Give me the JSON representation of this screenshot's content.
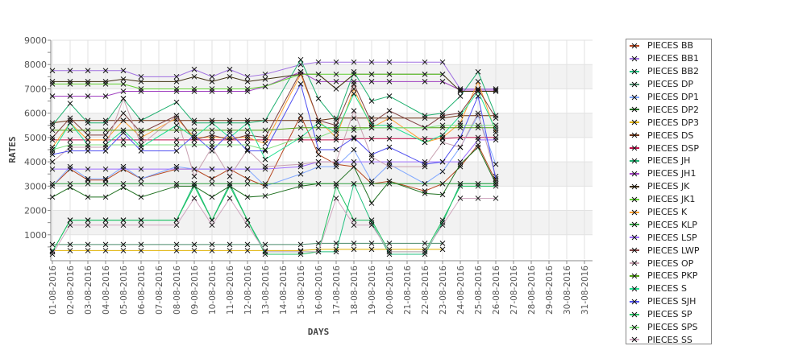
{
  "chart_data": {
    "type": "line",
    "xlabel": "DAYS",
    "ylabel": "RATES",
    "ylim": [
      0,
      9000
    ],
    "yticks": [
      1000,
      2000,
      3000,
      4000,
      5000,
      6000,
      7000,
      8000,
      9000
    ],
    "x_tick_labels": [
      "01-08-2016",
      "02-08-2016",
      "03-08-2016",
      "04-08-2016",
      "05-08-2016",
      "06-08-2016",
      "07-08-2016",
      "08-08-2016",
      "09-08-2016",
      "10-08-2016",
      "11-08-2016",
      "12-08-2016",
      "13-08-2016",
      "14-08-2016",
      "15-08-2016",
      "16-08-2016",
      "17-08-2016",
      "18-08-2016",
      "19-08-2016",
      "20-08-2016",
      "21-08-2016",
      "22-08-2016",
      "23-08-2016",
      "24-08-2016",
      "25-08-2016",
      "26-08-2016",
      "27-08-2016",
      "28-08-2016",
      "29-08-2016",
      "30-08-2016",
      "31-08-2016"
    ],
    "x_days": [
      1,
      2,
      3,
      4,
      5,
      6,
      8,
      9,
      10,
      11,
      12,
      13,
      15,
      16,
      17,
      18,
      19,
      20,
      22,
      23,
      24,
      25,
      26
    ],
    "legend_position": "right",
    "grid": true,
    "series": [
      {
        "name": "PIECES BB",
        "color": "#b5461f",
        "values": [
          3000,
          3700,
          3250,
          3250,
          3700,
          3300,
          3700,
          3700,
          3300,
          3700,
          3300,
          3000,
          5900,
          4300,
          3900,
          3800,
          3100,
          3200,
          2800,
          3100,
          3800,
          4700,
          3200
        ]
      },
      {
        "name": "PIECES BB1",
        "color": "#a070e0",
        "values": [
          7750,
          7750,
          7750,
          7750,
          7750,
          7500,
          7500,
          7800,
          7500,
          7800,
          7500,
          7600,
          8000,
          8100,
          8100,
          8100,
          8100,
          8100,
          8100,
          8100,
          7000,
          7000,
          7000
        ]
      },
      {
        "name": "PIECES BB2",
        "color": "#20c080",
        "values": [
          300,
          1600,
          1600,
          1600,
          1600,
          1600,
          1600,
          3100,
          1600,
          3100,
          1600,
          300,
          300,
          300,
          300,
          3100,
          1500,
          200,
          200,
          1500,
          3100,
          3100,
          3100
        ]
      },
      {
        "name": "PIECES DP",
        "color": "#4a8a6a",
        "values": [
          600,
          600,
          600,
          600,
          600,
          600,
          600,
          600,
          600,
          600,
          600,
          600,
          600,
          650,
          650,
          650,
          650,
          650,
          650,
          650,
          null,
          null,
          null
        ]
      },
      {
        "name": "PIECES DP1",
        "color": "#80a8ff",
        "values": [
          3000,
          3800,
          3300,
          3300,
          3800,
          3300,
          3800,
          3700,
          3700,
          3700,
          3700,
          3000,
          3500,
          3800,
          3800,
          4500,
          3200,
          3900,
          3100,
          3600,
          4600,
          5900,
          3900
        ]
      },
      {
        "name": "PIECES DP2",
        "color": "#207020",
        "values": [
          2550,
          2950,
          2550,
          2550,
          2950,
          2550,
          3000,
          3000,
          2550,
          3000,
          2550,
          2600,
          3000,
          3100,
          3100,
          3800,
          2300,
          3200,
          2700,
          2650,
          3900,
          4600,
          3100
        ]
      },
      {
        "name": "PIECES DP3",
        "color": "#e0b000",
        "values": [
          350,
          350,
          350,
          350,
          350,
          350,
          350,
          350,
          350,
          350,
          350,
          350,
          350,
          400,
          400,
          400,
          400,
          400,
          400,
          400,
          null,
          null,
          null
        ]
      },
      {
        "name": "PIECES DS",
        "color": "#6a3010",
        "values": [
          5600,
          5700,
          5700,
          5700,
          5700,
          5700,
          5700,
          5700,
          5700,
          5700,
          5700,
          5700,
          5700,
          5700,
          5800,
          5800,
          5800,
          5800,
          5800,
          5800,
          5900,
          5900,
          5900
        ]
      },
      {
        "name": "PIECES DSP",
        "color": "#c0104a",
        "values": [
          4900,
          4900,
          4900,
          4900,
          4900,
          4900,
          4900,
          4900,
          4900,
          4900,
          4900,
          4900,
          4900,
          4900,
          4900,
          4950,
          4950,
          4950,
          4950,
          4950,
          5000,
          5000,
          5000
        ]
      },
      {
        "name": "PIECES JH",
        "color": "#20b070",
        "values": [
          5500,
          6400,
          5600,
          5600,
          6600,
          5700,
          6450,
          5600,
          5600,
          5600,
          5600,
          5700,
          8200,
          6600,
          5700,
          7700,
          6500,
          6700,
          5900,
          6000,
          6700,
          7700,
          5900
        ]
      },
      {
        "name": "PIECES JH1",
        "color": "#a040c0",
        "values": [
          6700,
          6700,
          6700,
          6700,
          6900,
          6900,
          6900,
          6900,
          6900,
          6900,
          6900,
          7100,
          7700,
          7300,
          7300,
          7300,
          7300,
          7300,
          7300,
          7300,
          6950,
          6950,
          6950
        ]
      },
      {
        "name": "PIECES JK",
        "color": "#403010",
        "values": [
          7300,
          7300,
          7300,
          7300,
          7400,
          7300,
          7300,
          7500,
          7300,
          7500,
          7300,
          7400,
          7600,
          7600,
          7000,
          7600,
          7600,
          7600,
          7600,
          7600,
          6900,
          6900,
          6900
        ]
      },
      {
        "name": "PIECES JK1",
        "color": "#60d030",
        "values": [
          7200,
          7200,
          7200,
          7200,
          7200,
          7000,
          7000,
          7000,
          7000,
          7000,
          7000,
          7100,
          7600,
          7600,
          7600,
          7600,
          7600,
          7600,
          7600,
          7600,
          null,
          null,
          null
        ]
      },
      {
        "name": "PIECES K",
        "color": "#ffa030",
        "values": [
          4600,
          5600,
          4900,
          4900,
          5700,
          5000,
          5800,
          5000,
          5000,
          5000,
          5000,
          4750,
          7600,
          5700,
          5000,
          7000,
          5400,
          5800,
          4800,
          5000,
          5600,
          7300,
          5200
        ]
      },
      {
        "name": "PIECES KLP",
        "color": "#30a040",
        "values": [
          3100,
          3100,
          3100,
          3100,
          3100,
          3100,
          3100,
          3100,
          3100,
          3100,
          3100,
          3100,
          3100,
          3100,
          3100,
          3100,
          3100,
          3100,
          3100,
          3100,
          3100,
          3100,
          3100
        ]
      },
      {
        "name": "PIECES LSP",
        "color": "#a070ff",
        "values": [
          3700,
          3700,
          3700,
          3700,
          3700,
          3700,
          3700,
          3700,
          3700,
          3700,
          3700,
          3700,
          3800,
          4000,
          4000,
          4000,
          4000,
          4000,
          4000,
          4000,
          4000,
          4900,
          4900
        ]
      },
      {
        "name": "PIECES LWP",
        "color": "#804040",
        "values": [
          5000,
          5800,
          5100,
          5100,
          6000,
          5200,
          5900,
          4900,
          5100,
          4900,
          5100,
          5000,
          7700,
          5700,
          5500,
          7200,
          5600,
          6100,
          5400,
          5900,
          6000,
          7000,
          5800
        ]
      },
      {
        "name": "PIECES OP",
        "color": "#c8a0b0",
        "values": [
          4000,
          4600,
          4600,
          4600,
          6600,
          4700,
          5900,
          3400,
          4600,
          3400,
          4500,
          3800,
          3900,
          4000,
          4000,
          6100,
          4200,
          3800,
          3800,
          4800,
          4600,
          6000,
          3400
        ]
      },
      {
        "name": "PIECES PKP",
        "color": "#50a010",
        "values": [
          5300,
          5300,
          5300,
          5300,
          5300,
          5300,
          5300,
          5300,
          5300,
          5300,
          5300,
          5300,
          5400,
          5400,
          5400,
          5400,
          5400,
          5400,
          5400,
          5400,
          5400,
          5400,
          5400
        ]
      },
      {
        "name": "PIECES S",
        "color": "#20e090",
        "values": [
          4400,
          5600,
          4700,
          4700,
          5300,
          4600,
          5500,
          5000,
          5600,
          5000,
          5600,
          4100,
          5000,
          5600,
          5200,
          6800,
          5500,
          5500,
          4800,
          5100,
          5900,
          6900,
          5300
        ]
      },
      {
        "name": "PIECES SJH",
        "color": "#5050f0",
        "values": [
          4300,
          4450,
          4450,
          4450,
          5200,
          4450,
          4450,
          5100,
          4450,
          5200,
          4450,
          4450,
          7200,
          4500,
          4500,
          5000,
          4300,
          4600,
          3900,
          4000,
          5000,
          6700,
          3300
        ]
      },
      {
        "name": "PIECES SP",
        "color": "#20c060",
        "values": [
          300,
          1600,
          1600,
          1600,
          1600,
          1600,
          1600,
          3000,
          1600,
          3000,
          1600,
          200,
          200,
          300,
          3000,
          1600,
          1600,
          300,
          300,
          1600,
          3000,
          3000,
          3000
        ]
      },
      {
        "name": "PIECES SPS",
        "color": "#80e080",
        "values": [
          4500,
          4700,
          4700,
          4700,
          4700,
          4700,
          4700,
          4700,
          4700,
          4700,
          4700,
          4500,
          5000,
          5000,
          5300,
          5300,
          5400,
          5400,
          5400,
          5500,
          5500,
          5500,
          5500
        ]
      },
      {
        "name": "PIECES SS",
        "color": "#d0a8c0",
        "values": [
          200,
          1400,
          1400,
          1400,
          1400,
          1400,
          1400,
          2500,
          1400,
          2500,
          1400,
          300,
          300,
          300,
          2500,
          1400,
          1400,
          300,
          300,
          1400,
          2500,
          2500,
          2500
        ]
      }
    ]
  }
}
